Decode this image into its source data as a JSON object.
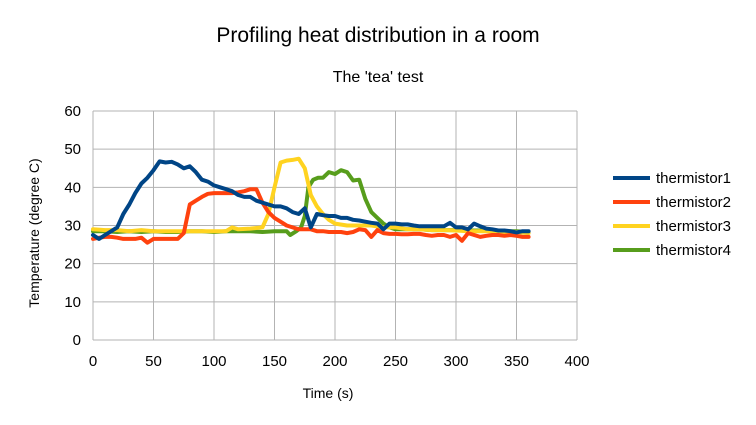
{
  "chart_data": {
    "type": "line",
    "title": "Profiling heat distribution in a room",
    "subtitle": "The 'tea' test",
    "xlabel": "Time (s)",
    "ylabel": "Temperature (degree C)",
    "xlim": [
      0,
      400
    ],
    "ylim": [
      0,
      60
    ],
    "x_ticks": [
      0,
      50,
      100,
      150,
      200,
      250,
      300,
      350,
      400
    ],
    "y_ticks": [
      0,
      10,
      20,
      30,
      40,
      50,
      60
    ],
    "grid": true,
    "legend_position": "right",
    "series": [
      {
        "name": "thermistor1",
        "color": "#004586",
        "points": [
          [
            0,
            27.5
          ],
          [
            5,
            26.5
          ],
          [
            10,
            27.5
          ],
          [
            15,
            28.5
          ],
          [
            20,
            29.5
          ],
          [
            25,
            33
          ],
          [
            30,
            35.5
          ],
          [
            35,
            38.5
          ],
          [
            40,
            41
          ],
          [
            45,
            42.5
          ],
          [
            50,
            44.5
          ],
          [
            55,
            46.8
          ],
          [
            60,
            46.5
          ],
          [
            65,
            46.7
          ],
          [
            70,
            46
          ],
          [
            75,
            45
          ],
          [
            80,
            45.5
          ],
          [
            85,
            44
          ],
          [
            90,
            42
          ],
          [
            95,
            41.5
          ],
          [
            100,
            40.5
          ],
          [
            105,
            40
          ],
          [
            110,
            39.5
          ],
          [
            115,
            39
          ],
          [
            120,
            38
          ],
          [
            125,
            37.5
          ],
          [
            130,
            37.5
          ],
          [
            135,
            36.5
          ],
          [
            140,
            36
          ],
          [
            145,
            35.5
          ],
          [
            150,
            35
          ],
          [
            155,
            35
          ],
          [
            160,
            34.5
          ],
          [
            165,
            33.5
          ],
          [
            170,
            33
          ],
          [
            175,
            34.5
          ],
          [
            180,
            29.5
          ],
          [
            185,
            33
          ],
          [
            190,
            32.7
          ],
          [
            195,
            32.5
          ],
          [
            200,
            32.5
          ],
          [
            205,
            32
          ],
          [
            210,
            32
          ],
          [
            215,
            31.5
          ],
          [
            220,
            31.3
          ],
          [
            225,
            31
          ],
          [
            230,
            30.7
          ],
          [
            235,
            30.5
          ],
          [
            240,
            29
          ],
          [
            245,
            30.5
          ],
          [
            250,
            30.5
          ],
          [
            255,
            30.3
          ],
          [
            260,
            30.3
          ],
          [
            265,
            30
          ],
          [
            270,
            29.8
          ],
          [
            275,
            29.8
          ],
          [
            280,
            29.8
          ],
          [
            285,
            29.8
          ],
          [
            290,
            29.8
          ],
          [
            295,
            30.7
          ],
          [
            300,
            29.5
          ],
          [
            305,
            29.5
          ],
          [
            310,
            29
          ],
          [
            315,
            30.5
          ],
          [
            320,
            29.8
          ],
          [
            325,
            29.2
          ],
          [
            330,
            29
          ],
          [
            335,
            28.7
          ],
          [
            340,
            28.7
          ],
          [
            345,
            28.5
          ],
          [
            350,
            28.2
          ],
          [
            355,
            28.5
          ],
          [
            360,
            28.5
          ]
        ]
      },
      {
        "name": "thermistor2",
        "color": "#ff420e",
        "points": [
          [
            0,
            26.5
          ],
          [
            5,
            26.8
          ],
          [
            10,
            27
          ],
          [
            15,
            27
          ],
          [
            20,
            26.8
          ],
          [
            25,
            26.5
          ],
          [
            30,
            26.5
          ],
          [
            35,
            26.5
          ],
          [
            40,
            26.8
          ],
          [
            45,
            25.5
          ],
          [
            50,
            26.5
          ],
          [
            55,
            26.5
          ],
          [
            60,
            26.5
          ],
          [
            65,
            26.5
          ],
          [
            70,
            26.5
          ],
          [
            75,
            28
          ],
          [
            80,
            35.5
          ],
          [
            85,
            36.5
          ],
          [
            90,
            37.5
          ],
          [
            95,
            38.3
          ],
          [
            100,
            38.5
          ],
          [
            105,
            38.5
          ],
          [
            110,
            38.5
          ],
          [
            115,
            38.5
          ],
          [
            120,
            38.7
          ],
          [
            125,
            39
          ],
          [
            130,
            39.5
          ],
          [
            135,
            39.5
          ],
          [
            140,
            36
          ],
          [
            145,
            33.5
          ],
          [
            150,
            32
          ],
          [
            155,
            31
          ],
          [
            160,
            30
          ],
          [
            165,
            29.5
          ],
          [
            170,
            29
          ],
          [
            175,
            29
          ],
          [
            180,
            29
          ],
          [
            185,
            28.5
          ],
          [
            190,
            28.5
          ],
          [
            195,
            28.3
          ],
          [
            200,
            28.3
          ],
          [
            205,
            28.3
          ],
          [
            210,
            28
          ],
          [
            215,
            28.3
          ],
          [
            220,
            29
          ],
          [
            225,
            28.8
          ],
          [
            230,
            27
          ],
          [
            235,
            28.8
          ],
          [
            240,
            28
          ],
          [
            245,
            27.8
          ],
          [
            250,
            27.8
          ],
          [
            255,
            27.7
          ],
          [
            260,
            27.7
          ],
          [
            265,
            27.8
          ],
          [
            270,
            27.8
          ],
          [
            275,
            27.5
          ],
          [
            280,
            27.3
          ],
          [
            285,
            27.5
          ],
          [
            290,
            27.5
          ],
          [
            295,
            27
          ],
          [
            300,
            27.5
          ],
          [
            305,
            26
          ],
          [
            310,
            28
          ],
          [
            315,
            27.5
          ],
          [
            320,
            27
          ],
          [
            325,
            27.3
          ],
          [
            330,
            27.5
          ],
          [
            335,
            27.5
          ],
          [
            340,
            27.3
          ],
          [
            345,
            27.5
          ],
          [
            350,
            27.3
          ],
          [
            355,
            27
          ],
          [
            360,
            27
          ]
        ]
      },
      {
        "name": "thermistor3",
        "color": "#ffd320",
        "points": [
          [
            0,
            29
          ],
          [
            10,
            28.8
          ],
          [
            20,
            28.8
          ],
          [
            30,
            28.5
          ],
          [
            40,
            28.8
          ],
          [
            50,
            28.5
          ],
          [
            60,
            28.5
          ],
          [
            70,
            28.5
          ],
          [
            80,
            28.5
          ],
          [
            90,
            28.5
          ],
          [
            100,
            28.5
          ],
          [
            110,
            28.5
          ],
          [
            115,
            29.5
          ],
          [
            120,
            29
          ],
          [
            130,
            29.2
          ],
          [
            140,
            29.5
          ],
          [
            145,
            33
          ],
          [
            150,
            40
          ],
          [
            155,
            46.5
          ],
          [
            160,
            47
          ],
          [
            165,
            47.2
          ],
          [
            170,
            47.5
          ],
          [
            175,
            45
          ],
          [
            180,
            38
          ],
          [
            185,
            35
          ],
          [
            190,
            33
          ],
          [
            195,
            31.5
          ],
          [
            200,
            30.5
          ],
          [
            210,
            30
          ],
          [
            220,
            30
          ],
          [
            230,
            30
          ],
          [
            240,
            29.5
          ],
          [
            250,
            29.5
          ],
          [
            260,
            29
          ],
          [
            270,
            29
          ],
          [
            280,
            28.8
          ],
          [
            290,
            28.8
          ],
          [
            300,
            28.7
          ],
          [
            310,
            28.5
          ],
          [
            320,
            28.5
          ],
          [
            330,
            28.5
          ],
          [
            340,
            28.3
          ],
          [
            350,
            28.3
          ],
          [
            360,
            28
          ]
        ]
      },
      {
        "name": "thermistor4",
        "color": "#579d1c",
        "points": [
          [
            0,
            28.5
          ],
          [
            10,
            28.5
          ],
          [
            20,
            28.3
          ],
          [
            30,
            28.5
          ],
          [
            40,
            28.3
          ],
          [
            50,
            28.5
          ],
          [
            60,
            28.3
          ],
          [
            70,
            28.3
          ],
          [
            80,
            28.5
          ],
          [
            90,
            28.5
          ],
          [
            100,
            28.3
          ],
          [
            110,
            28.5
          ],
          [
            120,
            28.5
          ],
          [
            130,
            28.5
          ],
          [
            140,
            28.3
          ],
          [
            150,
            28.5
          ],
          [
            160,
            28.5
          ],
          [
            163,
            27.5
          ],
          [
            168,
            28.5
          ],
          [
            172,
            29.5
          ],
          [
            175,
            32.5
          ],
          [
            178,
            40
          ],
          [
            182,
            42
          ],
          [
            186,
            42.5
          ],
          [
            190,
            42.5
          ],
          [
            195,
            44
          ],
          [
            200,
            43.5
          ],
          [
            205,
            44.5
          ],
          [
            210,
            44
          ],
          [
            215,
            41.8
          ],
          [
            220,
            42
          ],
          [
            225,
            37
          ],
          [
            230,
            33.5
          ],
          [
            235,
            32
          ],
          [
            240,
            30.5
          ],
          [
            245,
            29.5
          ],
          [
            250,
            29
          ],
          [
            260,
            29
          ],
          [
            270,
            29
          ],
          [
            280,
            28.8
          ],
          [
            290,
            28.8
          ],
          [
            300,
            28.8
          ],
          [
            310,
            28.7
          ],
          [
            320,
            28.7
          ],
          [
            330,
            28.5
          ],
          [
            340,
            28.5
          ],
          [
            350,
            28.5
          ],
          [
            360,
            28.3
          ]
        ]
      }
    ]
  }
}
